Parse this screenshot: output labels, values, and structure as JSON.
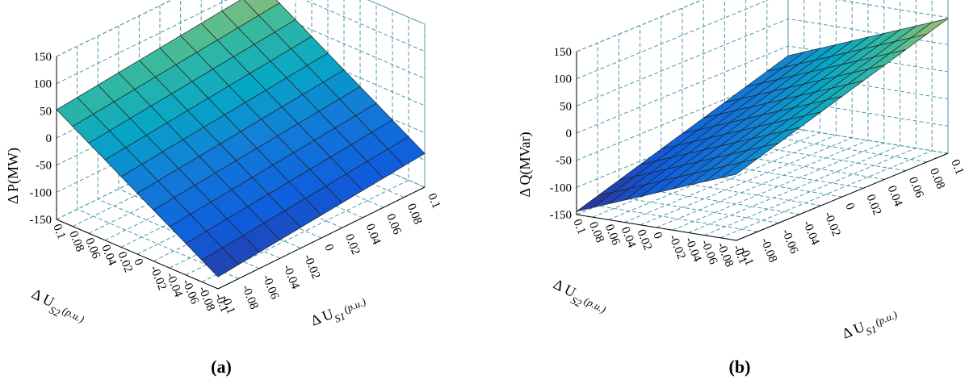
{
  "figure": {
    "panels": [
      {
        "label": "(a)",
        "zlabel": "Δ P(MW)",
        "xlabel_main": "Δ U",
        "xlabel_sub": "S1",
        "xlabel_unit": "(p.u.)",
        "ylabel_main": "Δ U",
        "ylabel_sub": "S2",
        "ylabel_unit": "(p.u.)"
      },
      {
        "label": "(b)",
        "zlabel": "Δ Q(MVar)",
        "xlabel_main": "Δ U",
        "xlabel_sub": "S1",
        "xlabel_unit": "(p.u.)",
        "ylabel_main": "Δ U",
        "ylabel_sub": "S2",
        "ylabel_unit": "(p.u.)"
      }
    ]
  },
  "chart_data": [
    {
      "type": "surface",
      "title": "(a)",
      "zlabel": "Δ P(MW)",
      "xlabel": "Δ U_S1(p.u.)",
      "ylabel": "Δ U_S2(p.u.)",
      "x": [
        -0.1,
        -0.08,
        -0.06,
        -0.04,
        -0.02,
        0,
        0.02,
        0.04,
        0.06,
        0.08,
        0.1
      ],
      "y": [
        -0.1,
        -0.08,
        -0.06,
        -0.04,
        -0.02,
        0,
        0.02,
        0.04,
        0.06,
        0.08,
        0.1
      ],
      "xticks": [
        "-0.1",
        "-0.08",
        "-0.06",
        "-0.04",
        "-0.02",
        "0",
        "0.02",
        "0.04",
        "0.06",
        "0.08",
        "0.1"
      ],
      "yticks": [
        "-0.1",
        "-0.08",
        "-0.06",
        "-0.04",
        "-0.02",
        "0",
        "0.02",
        "0.04",
        "0.06",
        "0.08",
        "0.1"
      ],
      "zticks": [
        "-150",
        "-100",
        "-50",
        "0",
        "50",
        "100",
        "150"
      ],
      "zlim": [
        -150,
        150
      ],
      "corner_values": {
        "x_min_y_min": -128,
        "x_max_y_min": -88,
        "x_min_y_max": 52,
        "x_max_y_max": 148
      },
      "colormap": "parula"
    },
    {
      "type": "surface",
      "title": "(b)",
      "zlabel": "Δ Q(MVar)",
      "xlabel": "Δ U_S1(p.u.)",
      "ylabel": "Δ U_S2(p.u.)",
      "x": [
        -0.1,
        -0.08,
        -0.06,
        -0.04,
        -0.02,
        0,
        0.02,
        0.04,
        0.06,
        0.08,
        0.1
      ],
      "y": [
        -0.1,
        -0.08,
        -0.06,
        -0.04,
        -0.02,
        0,
        0.02,
        0.04,
        0.06,
        0.08,
        0.1
      ],
      "xticks": [
        "-0.1",
        "-0.08",
        "-0.06",
        "-0.04",
        "-0.02",
        "0",
        "0.02",
        "0.04",
        "0.06",
        "0.08",
        "0.1"
      ],
      "yticks": [
        "-0.1",
        "-0.08",
        "-0.06",
        "-0.04",
        "-0.02",
        "0",
        "0.02",
        "0.04",
        "0.06",
        "0.08",
        "0.1"
      ],
      "zticks": [
        "-150",
        "-100",
        "-50",
        "0",
        "50",
        "100",
        "150"
      ],
      "zlim": [
        -150,
        150
      ],
      "corner_values": {
        "x_min_y_min": -28,
        "x_max_y_min": 98,
        "x_min_y_max": -144,
        "x_max_y_max": 4
      },
      "colormap": "parula"
    }
  ]
}
